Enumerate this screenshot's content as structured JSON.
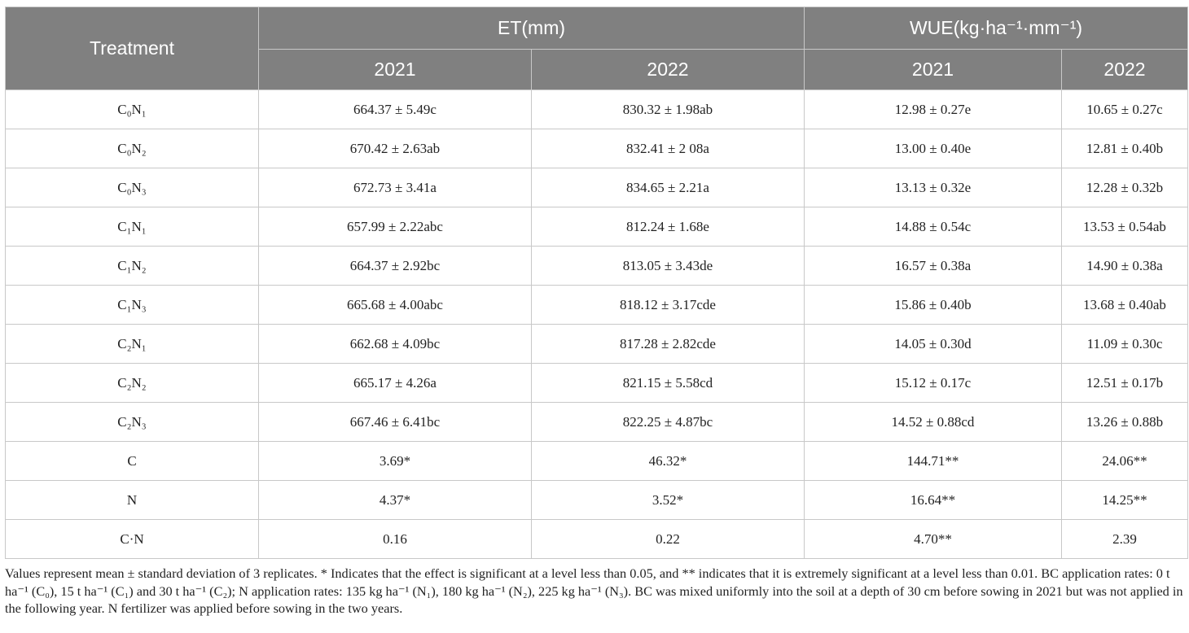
{
  "table": {
    "header": {
      "treatment": "Treatment",
      "groups": [
        "ET(mm)",
        "WUE(kg·ha⁻¹·mm⁻¹)"
      ],
      "years": [
        "2021",
        "2022",
        "2021",
        "2022"
      ]
    },
    "rows": [
      [
        "C₀N₁",
        "664.37 ± 5.49c",
        "830.32 ± 1.98ab",
        "12.98 ± 0.27e",
        "10.65 ± 0.27c"
      ],
      [
        "C₀N₂",
        "670.42 ± 2.63ab",
        "832.41 ± 2 08a",
        "13.00 ± 0.40e",
        "12.81 ± 0.40b"
      ],
      [
        "C₀N₃",
        "672.73 ± 3.41a",
        "834.65 ± 2.21a",
        "13.13 ± 0.32e",
        "12.28 ± 0.32b"
      ],
      [
        "C₁N₁",
        "657.99 ± 2.22abc",
        "812.24 ± 1.68e",
        "14.88 ± 0.54c",
        "13.53 ± 0.54ab"
      ],
      [
        "C₁N₂",
        "664.37 ± 2.92bc",
        "813.05 ± 3.43de",
        "16.57 ± 0.38a",
        "14.90 ± 0.38a"
      ],
      [
        "C₁N₃",
        "665.68 ± 4.00abc",
        "818.12 ± 3.17cde",
        "15.86 ± 0.40b",
        "13.68 ± 0.40ab"
      ],
      [
        "C₂N₁",
        "662.68 ± 4.09bc",
        "817.28 ± 2.82cde",
        "14.05 ± 0.30d",
        "11.09 ± 0.30c"
      ],
      [
        "C₂N₂",
        "665.17 ± 4.26a",
        "821.15 ± 5.58cd",
        "15.12 ± 0.17c",
        "12.51 ± 0.17b"
      ],
      [
        "C₂N₃",
        "667.46 ± 6.41bc",
        "822.25 ± 4.87bc",
        "14.52 ± 0.88cd",
        "13.26 ± 0.88b"
      ],
      [
        "C",
        "3.69*",
        "46.32*",
        "144.71**",
        "24.06**"
      ],
      [
        "N",
        "4.37*",
        "3.52*",
        "16.64**",
        "14.25**"
      ],
      [
        "C·N",
        "0.16",
        "0.22",
        "4.70**",
        "2.39"
      ]
    ]
  },
  "footnote": "Values represent mean ± standard deviation of 3 replicates. * Indicates that the effect is significant at a level less than 0.05, and ** indicates that it is extremely significant at a level less than 0.01. BC application rates: 0 t ha⁻¹ (C₀), 15 t ha⁻¹ (C₁) and 30 t ha⁻¹ (C₂); N application rates: 135 kg ha⁻¹ (N₁), 180 kg ha⁻¹ (N₂), 225 kg ha⁻¹ (N₃). BC was mixed uniformly into the soil at a depth of 30 cm before sowing in 2021 but was not applied in the following year. N fertilizer was applied before sowing in the two years."
}
